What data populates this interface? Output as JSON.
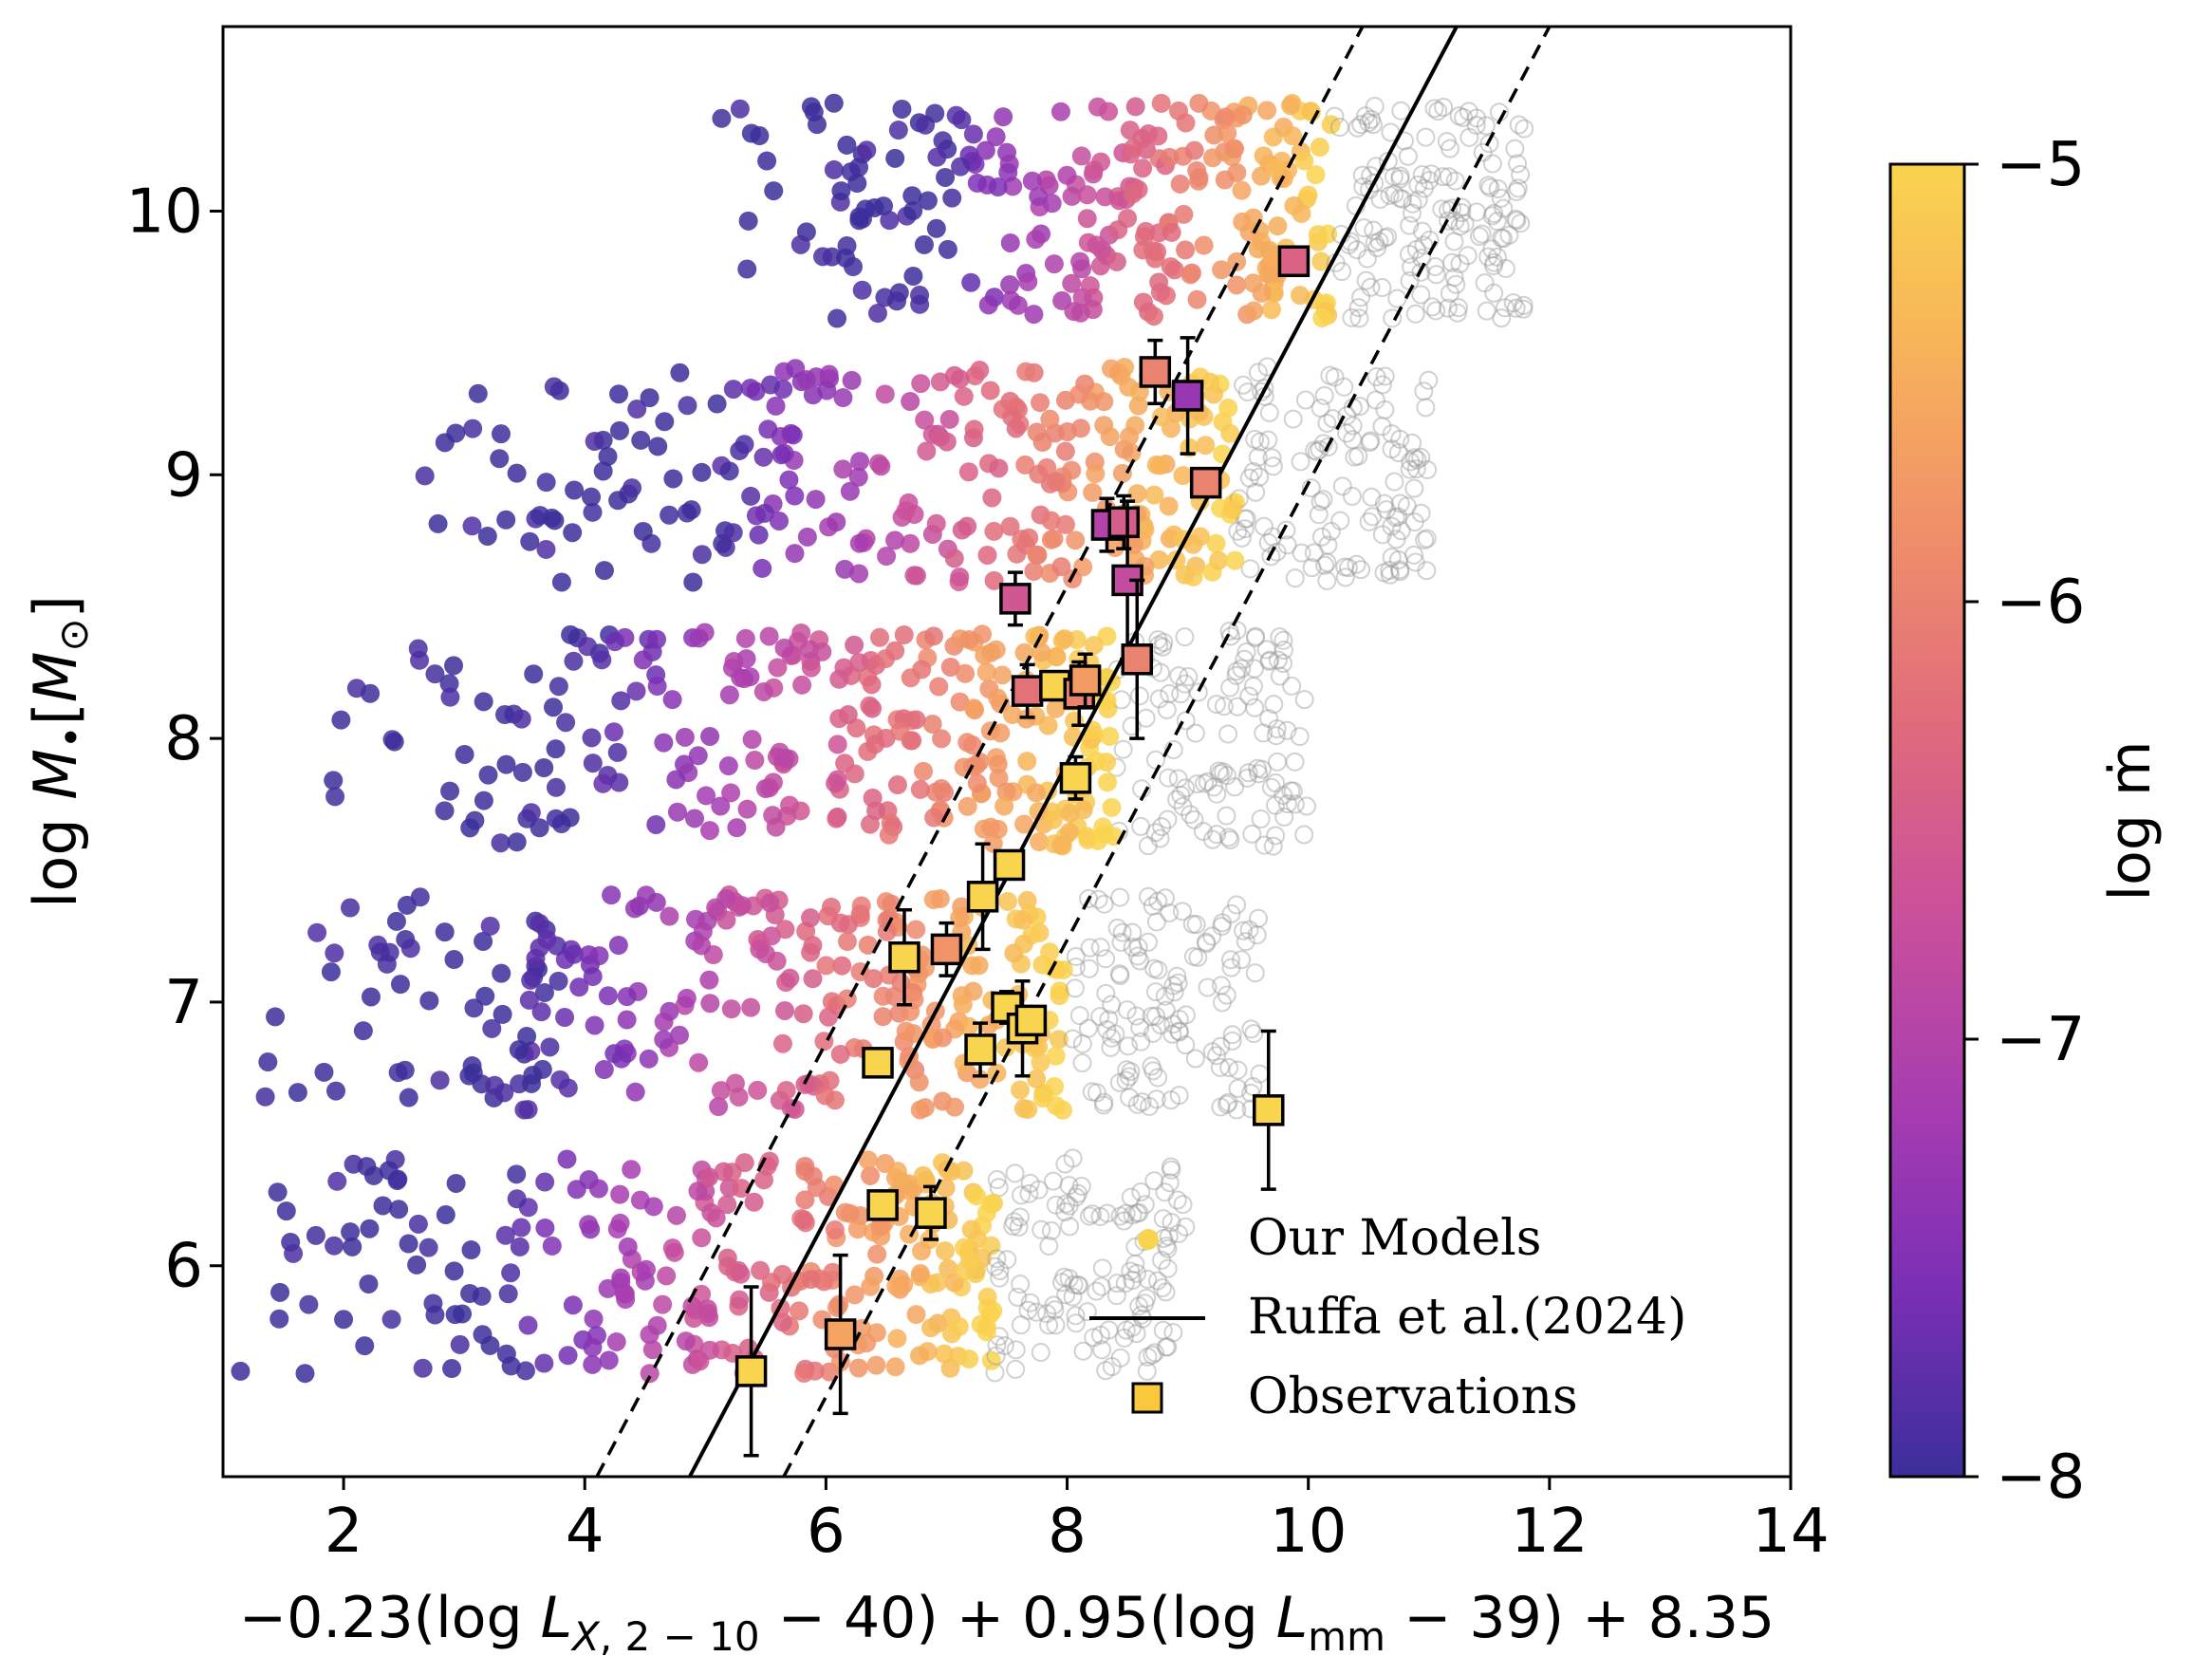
{
  "chart_data": {
    "type": "scatter",
    "title": "",
    "xlabel": "−0.23(log L_X,2−10 − 40) + 0.95(log L_mm − 39) + 8.35",
    "ylabel": "log M•[M⊙]",
    "xlim": [
      1,
      14
    ],
    "ylim": [
      5.2,
      10.7
    ],
    "xticks": [
      "2",
      "4",
      "6",
      "8",
      "10",
      "12",
      "14"
    ],
    "yticks": [
      "6",
      "7",
      "8",
      "9",
      "10"
    ],
    "xtick_values": [
      2,
      4,
      6,
      8,
      10,
      12,
      14
    ],
    "ytick_values": [
      6,
      7,
      8,
      9,
      10
    ],
    "colorbar": {
      "label": "log ṁ",
      "range": [
        -8,
        -5
      ],
      "ticks": [
        "−5",
        "−6",
        "−7",
        "−8"
      ],
      "tick_values": [
        -5,
        -6,
        -7,
        -8
      ],
      "colors": [
        "#3b2f9a",
        "#7a2fb5",
        "#a83db0",
        "#c9509a",
        "#e06a7c",
        "#ef8e6a",
        "#f7b25a",
        "#f9d44e"
      ]
    },
    "model_bands": [
      {
        "mass_center": 6.0,
        "x_range": [
          1.0,
          9.0
        ]
      },
      {
        "mass_center": 7.0,
        "x_range": [
          1.0,
          9.6
        ]
      },
      {
        "mass_center": 8.0,
        "x_range": [
          1.5,
          10.0
        ]
      },
      {
        "mass_center": 9.0,
        "x_range": [
          2.5,
          11.0
        ]
      },
      {
        "mass_center": 10.0,
        "x_range": [
          5.0,
          11.8
        ]
      }
    ],
    "relation": {
      "name": "Ruffa et al.(2024)",
      "points": [
        [
          4.87,
          5.2
        ],
        [
          11.23,
          10.7
        ]
      ],
      "scatter_lines": [
        [
          [
            4.1,
            5.2
          ],
          [
            10.45,
            10.7
          ]
        ],
        [
          [
            5.65,
            5.2
          ],
          [
            12.0,
            10.7
          ]
        ]
      ]
    },
    "observations": [
      {
        "x": 5.38,
        "y": 5.6,
        "yerr": 0.32,
        "logmdot": -5.0
      },
      {
        "x": 6.12,
        "y": 5.74,
        "yerr": 0.3,
        "logmdot": -5.6
      },
      {
        "x": 6.47,
        "y": 6.23,
        "yerr": 0.0,
        "logmdot": -5.0
      },
      {
        "x": 6.87,
        "y": 6.2,
        "yerr": 0.1,
        "logmdot": -5.0
      },
      {
        "x": 6.43,
        "y": 6.77,
        "yerr": 0.0,
        "logmdot": -5.0
      },
      {
        "x": 6.65,
        "y": 7.17,
        "yerr": 0.18,
        "logmdot": -5.0
      },
      {
        "x": 7.0,
        "y": 7.2,
        "yerr": 0.1,
        "logmdot": -5.8
      },
      {
        "x": 7.3,
        "y": 7.4,
        "yerr": 0.2,
        "logmdot": -5.0
      },
      {
        "x": 7.52,
        "y": 7.52,
        "yerr": 0.0,
        "logmdot": -5.0
      },
      {
        "x": 7.28,
        "y": 6.82,
        "yerr": 0.1,
        "logmdot": -5.0
      },
      {
        "x": 7.5,
        "y": 6.98,
        "yerr": 0.06,
        "logmdot": -5.0
      },
      {
        "x": 7.63,
        "y": 6.9,
        "yerr": 0.18,
        "logmdot": -5.0
      },
      {
        "x": 7.7,
        "y": 6.93,
        "yerr": 0.0,
        "logmdot": -5.0
      },
      {
        "x": 7.57,
        "y": 8.53,
        "yerr": 0.1,
        "logmdot": -6.6
      },
      {
        "x": 7.67,
        "y": 8.18,
        "yerr": 0.1,
        "logmdot": -6.2
      },
      {
        "x": 7.9,
        "y": 8.2,
        "yerr": 0.0,
        "logmdot": -5.0
      },
      {
        "x": 8.07,
        "y": 7.85,
        "yerr": 0.08,
        "logmdot": -5.0
      },
      {
        "x": 8.1,
        "y": 8.17,
        "yerr": 0.12,
        "logmdot": -6.0
      },
      {
        "x": 8.15,
        "y": 8.22,
        "yerr": 0.1,
        "logmdot": -5.7
      },
      {
        "x": 8.33,
        "y": 8.81,
        "yerr": 0.1,
        "logmdot": -7.0
      },
      {
        "x": 8.47,
        "y": 8.82,
        "yerr": 0.1,
        "logmdot": -6.5
      },
      {
        "x": 8.5,
        "y": 8.6,
        "yerr": 0.3,
        "logmdot": -6.8
      },
      {
        "x": 8.58,
        "y": 8.3,
        "yerr": 0.3,
        "logmdot": -6.0
      },
      {
        "x": 8.73,
        "y": 9.39,
        "yerr": 0.12,
        "logmdot": -6.0
      },
      {
        "x": 9.0,
        "y": 9.3,
        "yerr": 0.22,
        "logmdot": -7.3
      },
      {
        "x": 9.15,
        "y": 8.97,
        "yerr": 0.0,
        "logmdot": -6.0
      },
      {
        "x": 9.88,
        "y": 9.81,
        "yerr": 0.0,
        "logmdot": -6.4
      },
      {
        "x": 9.67,
        "y": 6.59,
        "yerr": 0.3,
        "logmdot": -5.0
      }
    ],
    "legend": {
      "position": "lower-right",
      "entries": [
        "Our Models",
        "Ruffa et al.(2024)",
        "Observations"
      ]
    }
  }
}
